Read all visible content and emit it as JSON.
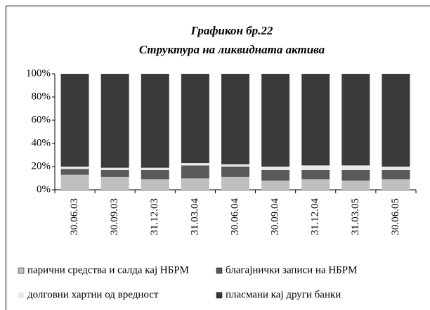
{
  "chart_data": {
    "type": "stacked_bar",
    "title": "Графикон бр.22",
    "subtitle": "Структура на ликвидната актива",
    "categories": [
      "30.06.03",
      "30.09.03",
      "31.12.03",
      "31.03.04",
      "30.06.04",
      "30.09.04",
      "31.12.04",
      "31.03.05",
      "30.06.05"
    ],
    "series": [
      {
        "name": "парични средства и салда кај НБРМ",
        "color": "#bfbfbf",
        "values": [
          13,
          11,
          9,
          10,
          11,
          8,
          9,
          8,
          9
        ]
      },
      {
        "name": "благајнички записи на НБРМ",
        "color": "#595959",
        "values": [
          5,
          6,
          8,
          11,
          9,
          9,
          8,
          9,
          8
        ]
      },
      {
        "name": "долговни хартии од вредност",
        "color": "#e8e8e8",
        "values": [
          2,
          2,
          2,
          2,
          2,
          3,
          4,
          4,
          3
        ]
      },
      {
        "name": "пласмани кај други банки",
        "color": "#3a3a3a",
        "values": [
          80,
          81,
          81,
          77,
          78,
          80,
          79,
          79,
          80
        ]
      }
    ],
    "ylim": [
      0,
      100
    ],
    "yticks": [
      {
        "value": 0,
        "label": "0%"
      },
      {
        "value": 20,
        "label": "20%"
      },
      {
        "value": 40,
        "label": "40%"
      },
      {
        "value": 60,
        "label": "60%"
      },
      {
        "value": 80,
        "label": "80%"
      },
      {
        "value": 100,
        "label": "100%"
      }
    ],
    "legend": "bottom"
  }
}
